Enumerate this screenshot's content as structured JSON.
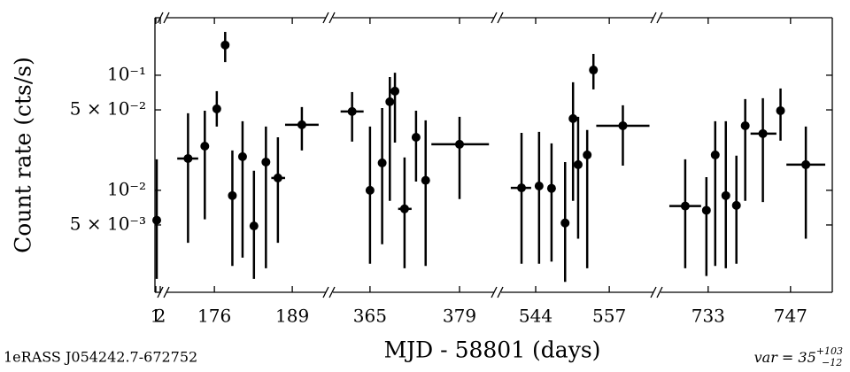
{
  "chart_data": {
    "type": "scatter",
    "yscale": "log",
    "xlabel": "MJD - 58801 (days)",
    "ylabel": "Count rate (cts/s)",
    "source_label": "1eRASS J054242.7-672752",
    "annotation": {
      "text": "var = 35",
      "sup": "+103",
      "sub": "−12"
    },
    "color": "#000000",
    "ylim": [
      0.0013,
      0.316
    ],
    "yticks": [
      {
        "value": 0.005,
        "label": "5 × 10⁻³"
      },
      {
        "value": 0.01,
        "label": "10⁻²"
      },
      {
        "value": 0.05,
        "label": "5 × 10⁻²"
      },
      {
        "value": 0.1,
        "label": "10⁻¹"
      }
    ],
    "panels": [
      {
        "xlim": [
          0.8,
          2.2
        ],
        "xticks": [
          1,
          2
        ],
        "x": [
          1.2
        ],
        "y": [
          0.0055
        ],
        "y_lower": [
          0.0017
        ],
        "y_upper": [
          0.0186
        ],
        "x_lower": [
          null
        ],
        "x_upper": [
          null
        ]
      },
      {
        "xlim": [
          168.0,
          194.6
        ],
        "xticks": [
          176,
          189
        ],
        "x": [
          171.6,
          174.4,
          176.4,
          177.8,
          179.0,
          180.7,
          182.6,
          184.6,
          186.6,
          190.6
        ],
        "y": [
          0.0189,
          0.0242,
          0.051,
          0.183,
          0.009,
          0.0196,
          0.0049,
          0.0176,
          0.0128,
          0.0371
        ],
        "y_lower": [
          0.0035,
          0.0056,
          0.0358,
          0.13,
          0.0022,
          0.0026,
          0.0017,
          0.0021,
          0.0035,
          0.0222
        ],
        "y_upper": [
          0.0467,
          0.0492,
          0.0727,
          0.238,
          0.0222,
          0.0398,
          0.0148,
          0.0358,
          0.0289,
          0.0529
        ],
        "x_lower": [
          169.8,
          null,
          null,
          null,
          null,
          null,
          null,
          null,
          185.5,
          187.8
        ],
        "x_upper": [
          173.3,
          null,
          null,
          null,
          null,
          null,
          null,
          null,
          187.8,
          193.4
        ]
      },
      {
        "xlim": [
          359.2,
          384.4
        ],
        "xticks": [
          365,
          379
        ],
        "x": [
          362.2,
          365.0,
          366.9,
          368.1,
          368.9,
          370.4,
          372.2,
          373.7,
          379.0
        ],
        "y": [
          0.0484,
          0.01,
          0.0173,
          0.0588,
          0.0727,
          0.0069,
          0.0289,
          0.0122,
          0.0251
        ],
        "y_lower": [
          0.0265,
          0.0023,
          0.0034,
          0.0081,
          0.026,
          0.0021,
          0.0119,
          0.0022,
          0.0084
        ],
        "y_upper": [
          0.0714,
          0.0358,
          0.0519,
          0.0965,
          0.105,
          0.0193,
          0.0492,
          0.0405,
          0.0435
        ],
        "x_lower": [
          360.4,
          null,
          null,
          null,
          null,
          369.4,
          null,
          null,
          374.6
        ],
        "x_upper": [
          364.0,
          null,
          null,
          null,
          null,
          371.5,
          null,
          null,
          383.6
        ]
      },
      {
        "xlim": [
          537.9,
          564.8
        ],
        "xticks": [
          544,
          557
        ],
        "x": [
          541.5,
          544.6,
          546.8,
          549.2,
          550.6,
          551.5,
          553.1,
          554.2,
          559.4
        ],
        "y": [
          0.0105,
          0.0109,
          0.0104,
          0.0052,
          0.042,
          0.0167,
          0.0203,
          0.111,
          0.0364
        ],
        "y_lower": [
          0.0023,
          0.0023,
          0.0024,
          0.0016,
          0.0081,
          0.0038,
          0.0021,
          0.0753,
          0.0164
        ],
        "y_upper": [
          0.0316,
          0.0322,
          0.0256,
          0.0176,
          0.0868,
          0.0435,
          0.0334,
          0.153,
          0.0548
        ],
        "x_lower": [
          539.6,
          null,
          null,
          null,
          null,
          null,
          null,
          null,
          554.7
        ],
        "x_upper": [
          543.2,
          null,
          null,
          null,
          null,
          null,
          null,
          null,
          564.1
        ]
      },
      {
        "xlim": [
          724.9,
          754.1
        ],
        "xticks": [
          733,
          747
        ],
        "x": [
          729.1,
          732.7,
          734.2,
          736.0,
          737.8,
          739.3,
          742.3,
          745.3,
          749.6
        ],
        "y": [
          0.0073,
          0.0067,
          0.0203,
          0.009,
          0.0074,
          0.0364,
          0.0311,
          0.0492,
          0.0167
        ],
        "y_lower": [
          0.0021,
          0.0018,
          0.0022,
          0.0021,
          0.0023,
          0.0081,
          0.0079,
          0.027,
          0.0038
        ],
        "y_upper": [
          0.0186,
          0.013,
          0.0398,
          0.0398,
          0.02,
          0.062,
          0.0631,
          0.0767,
          0.0358
        ],
        "x_lower": [
          726.4,
          null,
          null,
          null,
          null,
          null,
          740.2,
          null,
          746.3
        ],
        "x_upper": [
          731.8,
          null,
          null,
          null,
          null,
          null,
          744.6,
          null,
          752.9
        ]
      }
    ]
  }
}
